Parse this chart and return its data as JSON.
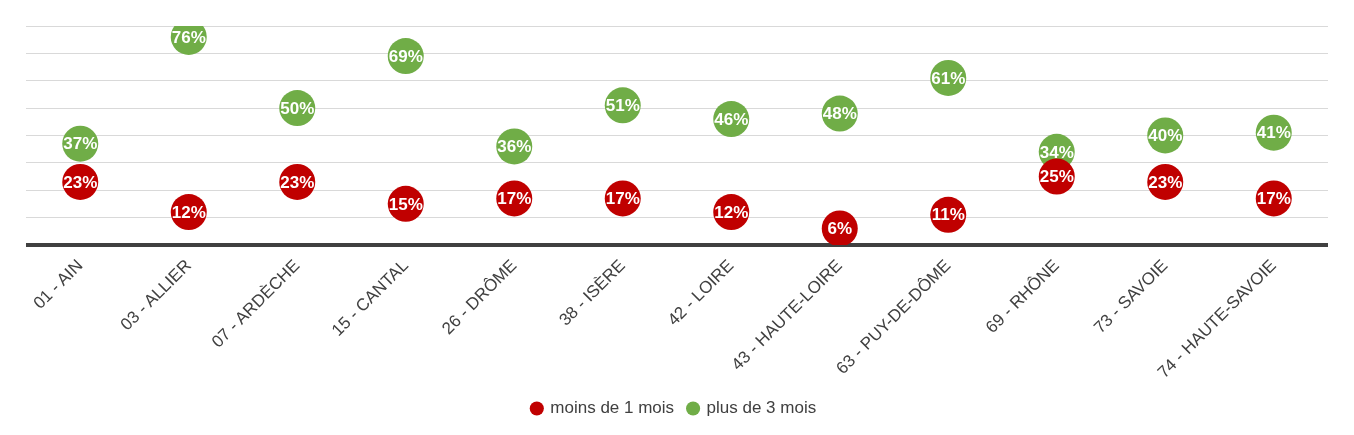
{
  "chart_data": {
    "type": "scatter",
    "categories": [
      "01 - AIN",
      "03 - ALLIER",
      "07 - ARDÈCHE",
      "15 - CANTAL",
      "26 - DRÔME",
      "38 - ISÈRE",
      "42 - LOIRE",
      "43 - HAUTE-LOIRE",
      "63 - PUY-DE-DÔME",
      "69 - RHÔNE",
      "73 - SAVOIE",
      "74 - HAUTE-SAVOIE"
    ],
    "series": [
      {
        "name": "moins de 1 mois",
        "color": "#c00000",
        "values": [
          23,
          12,
          23,
          15,
          17,
          17,
          12,
          6,
          11,
          25,
          23,
          17
        ],
        "value_labels": [
          "23%",
          "12%",
          "23%",
          "15%",
          "17%",
          "17%",
          "12%",
          "6%",
          "11%",
          "25%",
          "23%",
          "17%"
        ]
      },
      {
        "name": "plus de 3 mois",
        "color": "#70ad47",
        "values": [
          37,
          76,
          50,
          69,
          36,
          51,
          46,
          48,
          61,
          34,
          40,
          41
        ],
        "value_labels": [
          "37%",
          "76%",
          "50%",
          "69%",
          "36%",
          "51%",
          "46%",
          "48%",
          "61%",
          "34%",
          "40%",
          "41%"
        ]
      }
    ],
    "ylim": [
      0,
      80
    ],
    "yticks": [
      {
        "value": 0,
        "label": null
      },
      {
        "value": 10,
        "label": null
      },
      {
        "value": 20,
        "label": null
      },
      {
        "value": 30,
        "label": null
      },
      {
        "value": 40,
        "label": null
      },
      {
        "value": 50,
        "label": null
      },
      {
        "value": 60,
        "label": null
      },
      {
        "value": 70,
        "label": null
      },
      {
        "value": 80,
        "label": null
      }
    ],
    "tick_labels": "x",
    "grid": "y",
    "legend": "bottom",
    "marker": "circle"
  }
}
